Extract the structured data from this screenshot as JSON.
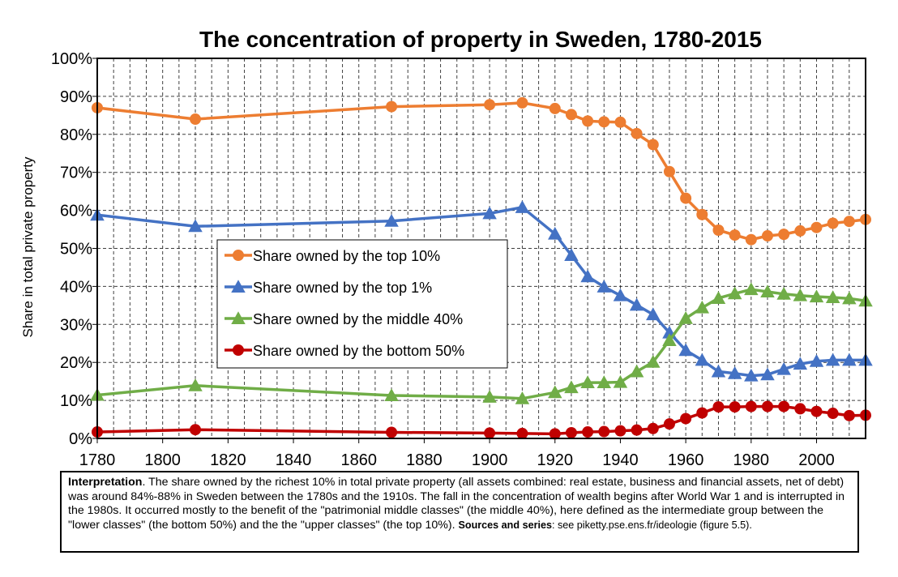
{
  "colors": {
    "top10": "#ED7D31",
    "top1": "#4472C4",
    "middle40": "#70AD47",
    "bottom50": "#C00000"
  },
  "note": {
    "lead": "Interpretation",
    "text": ". The share owned by the richest 10% in total private property (all assets combined: real estate, business and financial assets, net of debt) was around 84%-88% in Sweden between the 1780s and the 1910s. The fall in the concentration of wealth begins after World War 1 and is interrupted in the 1980s. It occurred mostly to the benefit of the \"patrimonial middle classes\" (the middle 40%), here defined as the intermediate group between the \"lower classes\" (the bottom 50%) and the the \"upper classes\" (the top 10%). ",
    "sources_label": "Sources and series",
    "sources_text": ": see piketty.pse.ens.fr/ideologie (figure 5.5)."
  },
  "chart_data": {
    "type": "line",
    "title": "The concentration of property in Sweden, 1780-2015",
    "ylabel": "Share in total private property",
    "xlabel": "",
    "xlim": [
      1780,
      2015
    ],
    "ylim": [
      0,
      100
    ],
    "x_ticks": [
      "1780",
      "1800",
      "1820",
      "1840",
      "1860",
      "1880",
      "1900",
      "1920",
      "1940",
      "1960",
      "1980",
      "2000"
    ],
    "y_ticks": [
      "0%",
      "10%",
      "20%",
      "30%",
      "40%",
      "50%",
      "60%",
      "70%",
      "80%",
      "90%",
      "100%"
    ],
    "grid": true,
    "legend_position": "center-left",
    "series": [
      {
        "name": "Share owned by the top 10%",
        "color": "#ED7D31",
        "marker": "circle",
        "x": [
          1780,
          1810,
          1870,
          1900,
          1910,
          1920,
          1925,
          1930,
          1935,
          1940,
          1945,
          1950,
          1955,
          1960,
          1965,
          1970,
          1975,
          1980,
          1985,
          1990,
          1995,
          2000,
          2005,
          2010,
          2015
        ],
        "values": [
          87,
          84,
          87.3,
          87.8,
          88.3,
          86.8,
          85.2,
          83.5,
          83.3,
          83.2,
          80.2,
          77.3,
          70.2,
          63.2,
          58.9,
          54.8,
          53.5,
          52.3,
          53.3,
          53.7,
          54.6,
          55.5,
          56.6,
          57.1,
          57.6
        ]
      },
      {
        "name": "Share owned by the top 1%",
        "color": "#4472C4",
        "marker": "triangle",
        "x": [
          1780,
          1810,
          1870,
          1900,
          1910,
          1920,
          1925,
          1930,
          1935,
          1940,
          1945,
          1950,
          1955,
          1960,
          1965,
          1970,
          1975,
          1980,
          1985,
          1990,
          1995,
          2000,
          2005,
          2010,
          2015
        ],
        "values": [
          58.8,
          55.8,
          57.2,
          59.2,
          60.8,
          53.8,
          48.2,
          42.6,
          39.9,
          37.6,
          35.1,
          32.6,
          27.8,
          23.2,
          20.6,
          17.6,
          17.1,
          16.5,
          16.8,
          18.2,
          19.6,
          20.3,
          20.6,
          20.6,
          20.6
        ]
      },
      {
        "name": "Share owned by the middle 40%",
        "color": "#70AD47",
        "marker": "triangle",
        "x": [
          1780,
          1810,
          1870,
          1900,
          1910,
          1920,
          1925,
          1930,
          1935,
          1940,
          1945,
          1950,
          1955,
          1960,
          1965,
          1970,
          1975,
          1980,
          1985,
          1990,
          1995,
          2000,
          2005,
          2010,
          2015
        ],
        "values": [
          11.4,
          13.9,
          11.3,
          10.9,
          10.5,
          12.1,
          13.4,
          14.7,
          14.7,
          14.8,
          17.6,
          20.1,
          25.8,
          31.6,
          34.4,
          36.9,
          38.1,
          39.2,
          38.6,
          38.0,
          37.6,
          37.3,
          37.1,
          36.8,
          36.2
        ]
      },
      {
        "name": "Share owned by the bottom 50%",
        "color": "#C00000",
        "marker": "circle",
        "x": [
          1780,
          1810,
          1870,
          1900,
          1910,
          1920,
          1925,
          1930,
          1935,
          1940,
          1945,
          1950,
          1955,
          1960,
          1965,
          1970,
          1975,
          1980,
          1985,
          1990,
          1995,
          2000,
          2005,
          2010,
          2015
        ],
        "values": [
          1.7,
          2.3,
          1.6,
          1.4,
          1.3,
          1.2,
          1.5,
          1.7,
          1.8,
          2.0,
          2.2,
          2.6,
          3.8,
          5.2,
          6.7,
          8.3,
          8.3,
          8.4,
          8.4,
          8.4,
          7.8,
          7.1,
          6.6,
          6.0,
          6.1
        ]
      }
    ]
  }
}
